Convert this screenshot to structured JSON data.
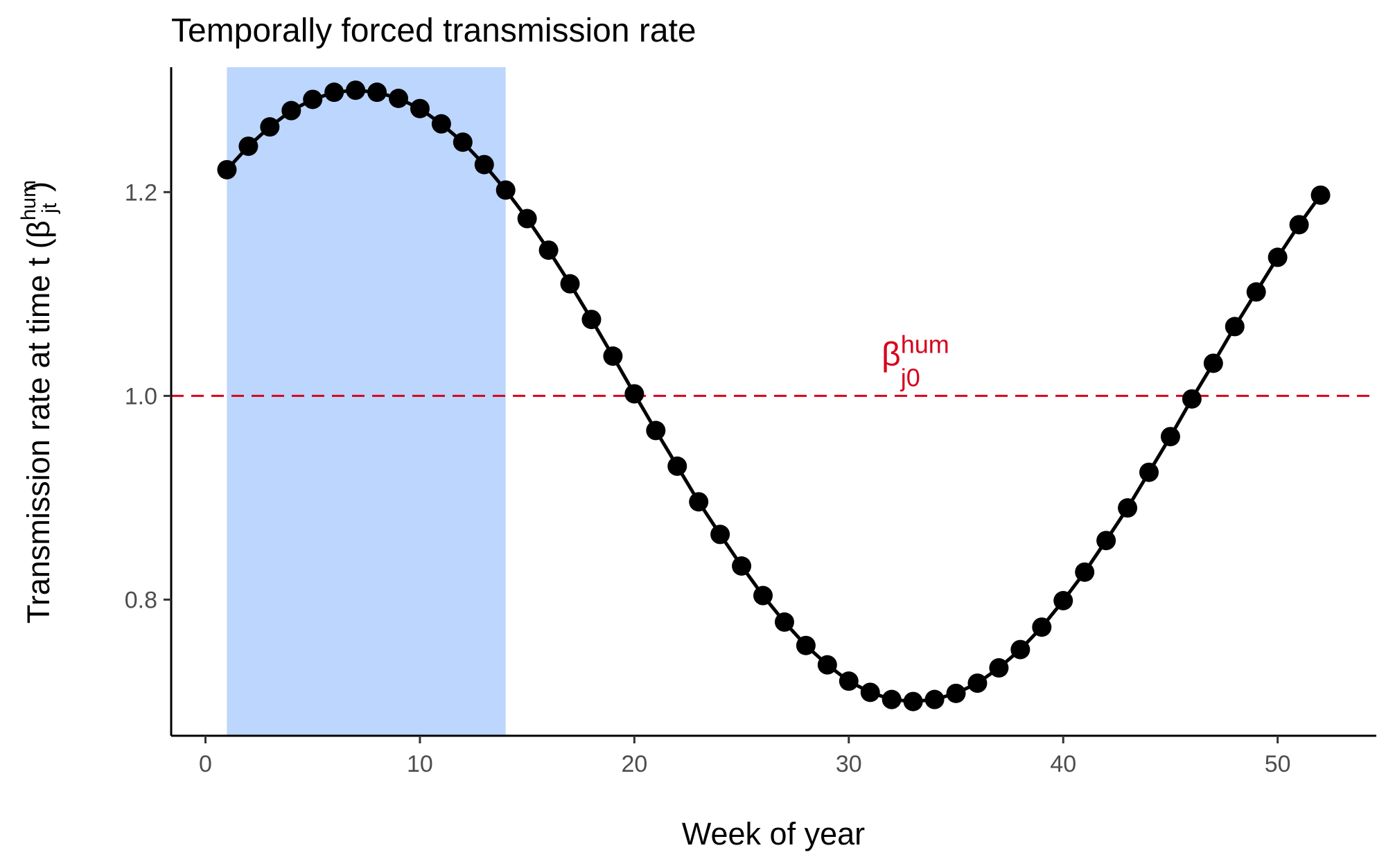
{
  "chart_data": {
    "type": "line",
    "title": "Temporally forced transmission rate",
    "xlabel": "Week of year",
    "ylabel": {
      "main": "Transmission rate at time t (",
      "symbol": "β",
      "superscript": "hum",
      "subscript": "jt",
      "close": ")"
    },
    "xlim": [
      -1.6,
      54.6
    ],
    "ylim": [
      0.6664,
      1.3226
    ],
    "x_ticks": [
      0,
      10,
      20,
      30,
      40,
      50
    ],
    "x_tick_labels": [
      "0",
      "10",
      "20",
      "30",
      "40",
      "50"
    ],
    "y_ticks": [
      0.8,
      1.0,
      1.2
    ],
    "y_tick_labels": [
      "0.8",
      "1.0",
      "1.2"
    ],
    "grid": false,
    "shaded_region": {
      "x_start": 1,
      "x_end": 14,
      "color": "#bcd6fd"
    },
    "reference_line": {
      "y": 1.0,
      "color": "#d7001c",
      "style": "dashed",
      "label": {
        "symbol": "β",
        "superscript": "hum",
        "subscript": "j0"
      },
      "label_x": 32.5
    },
    "series": [
      {
        "name": "Transmission rate",
        "color": "#000000",
        "x": [
          1,
          2,
          3,
          4,
          5,
          6,
          7,
          8,
          9,
          10,
          11,
          12,
          13,
          14,
          15,
          16,
          17,
          18,
          19,
          20,
          21,
          22,
          23,
          24,
          25,
          26,
          27,
          28,
          29,
          30,
          31,
          32,
          33,
          34,
          35,
          36,
          37,
          38,
          39,
          40,
          41,
          42,
          43,
          44,
          45,
          46,
          47,
          48,
          49,
          50,
          51,
          52
        ],
        "values": [
          1.222,
          1.245,
          1.264,
          1.28,
          1.291,
          1.298,
          1.3,
          1.298,
          1.292,
          1.282,
          1.267,
          1.249,
          1.227,
          1.202,
          1.174,
          1.143,
          1.11,
          1.075,
          1.039,
          1.002,
          0.966,
          0.931,
          0.896,
          0.864,
          0.833,
          0.804,
          0.778,
          0.755,
          0.736,
          0.72,
          0.709,
          0.702,
          0.7,
          0.702,
          0.708,
          0.718,
          0.733,
          0.751,
          0.773,
          0.799,
          0.827,
          0.858,
          0.89,
          0.925,
          0.96,
          0.997,
          1.032,
          1.068,
          1.102,
          1.136,
          1.168,
          1.197
        ]
      }
    ]
  }
}
